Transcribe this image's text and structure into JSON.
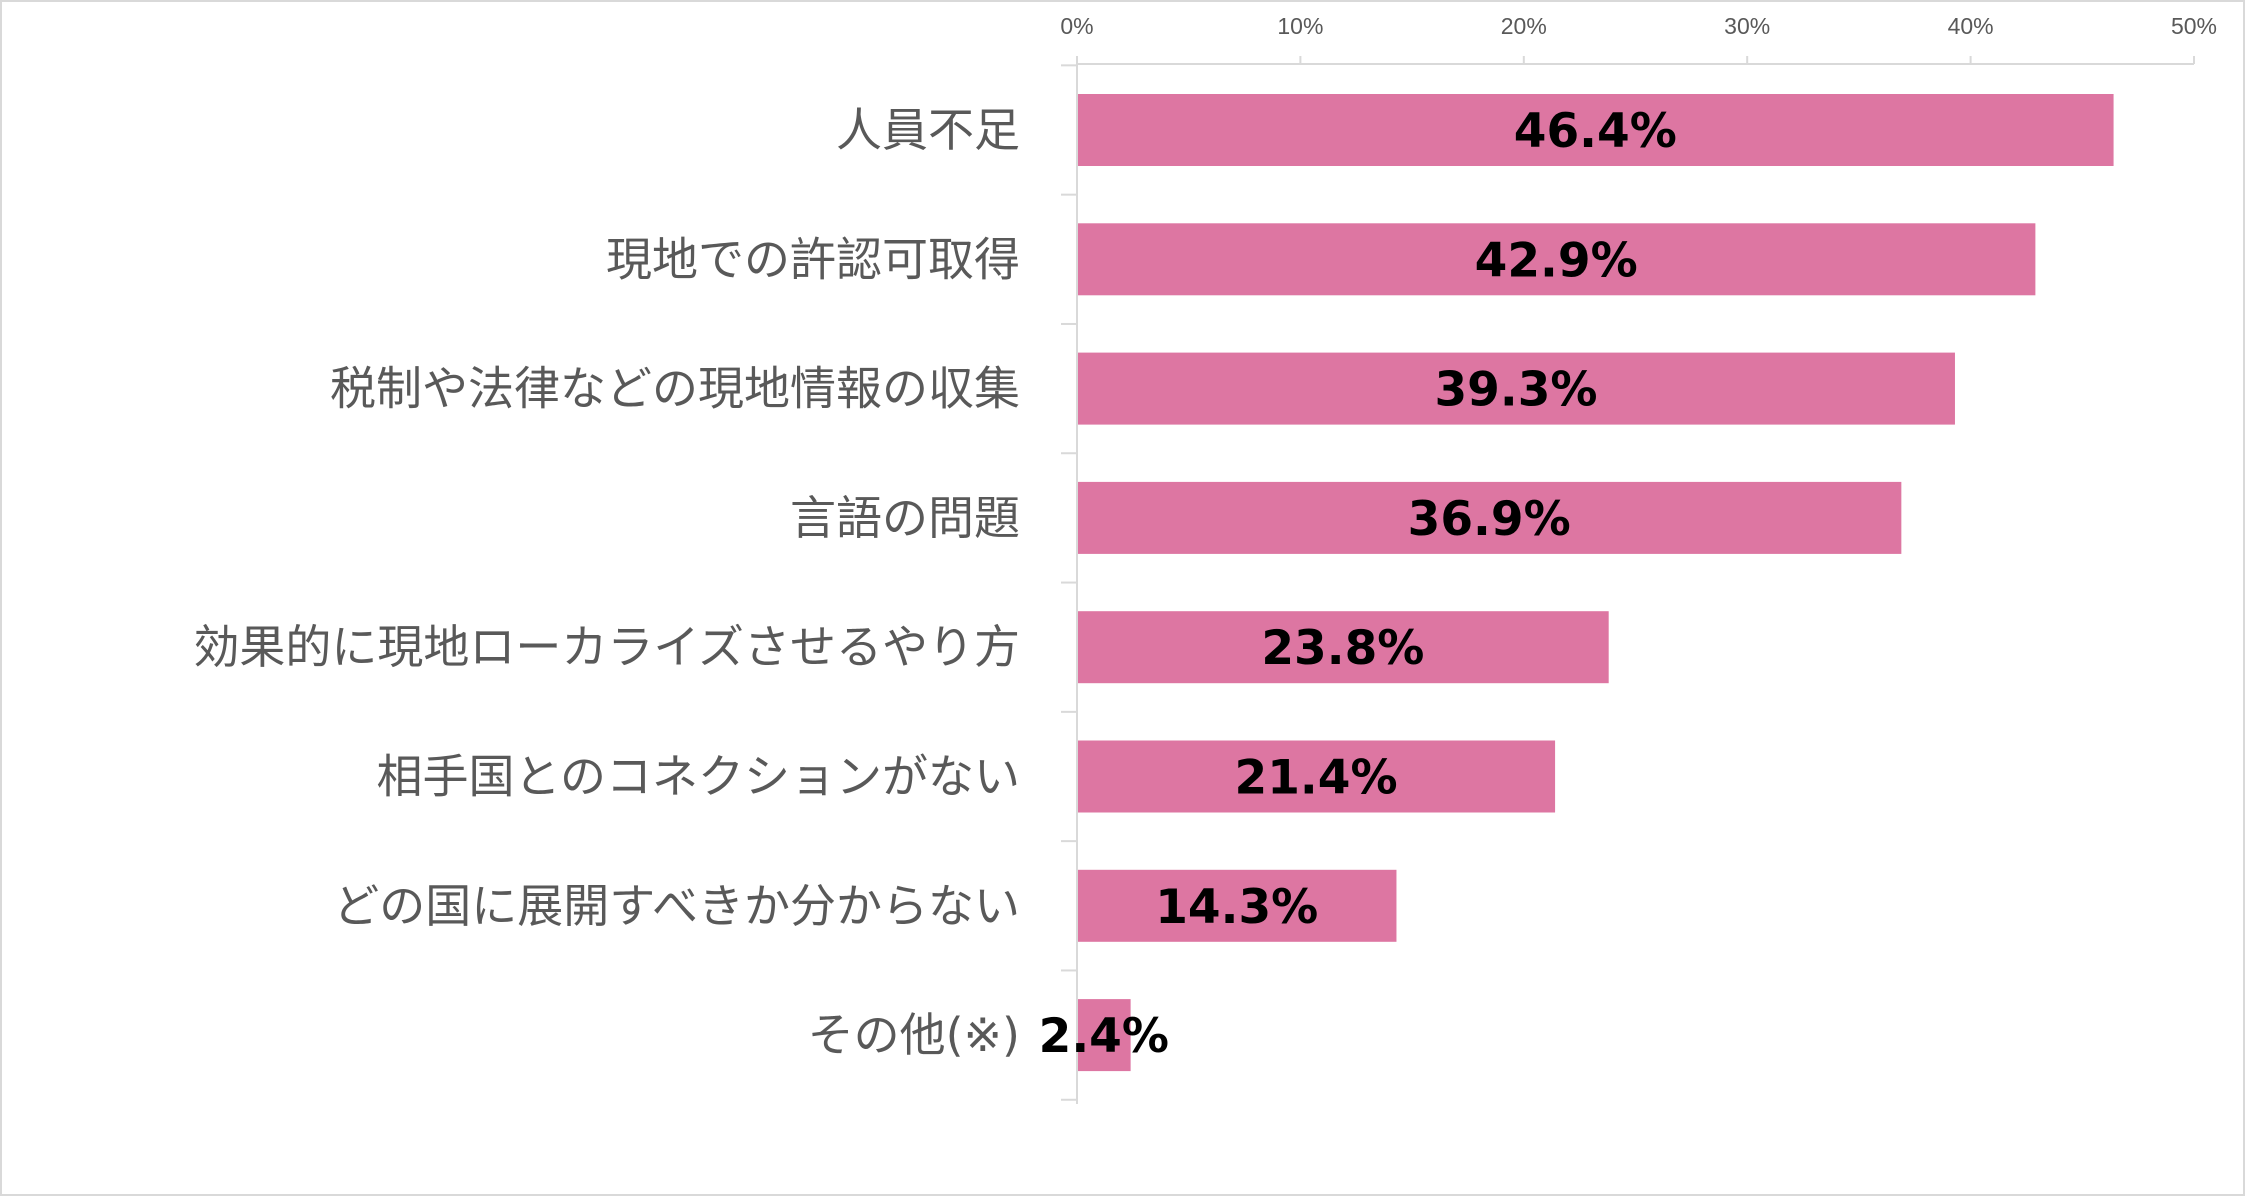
{
  "chart_data": {
    "type": "bar",
    "orientation": "horizontal",
    "categories": [
      "人員不足",
      "現地での許認可取得",
      "税制や法律などの現地情報の収集",
      "言語の問題",
      "効果的に現地ローカライズさせるやり方",
      "相手国とのコネクションがない",
      "どの国に展開すべきか分からない",
      "その他(※)"
    ],
    "values": [
      46.4,
      42.9,
      39.3,
      36.9,
      23.8,
      21.4,
      14.3,
      2.4
    ],
    "data_labels": [
      "46.4%",
      "42.9%",
      "39.3%",
      "36.9%",
      "23.8%",
      "21.4%",
      "14.3%",
      "2.4%"
    ],
    "xlim": [
      0,
      50
    ],
    "x_ticks": [
      0,
      10,
      20,
      30,
      40,
      50
    ],
    "x_tick_labels": [
      "0%",
      "10%",
      "20%",
      "30%",
      "40%",
      "50%"
    ],
    "x_axis_position": "top",
    "grid": false,
    "legend": "none",
    "bar_color": "#DD76A2",
    "axis_color": "#d9d9d9",
    "label_color": "#595959"
  }
}
